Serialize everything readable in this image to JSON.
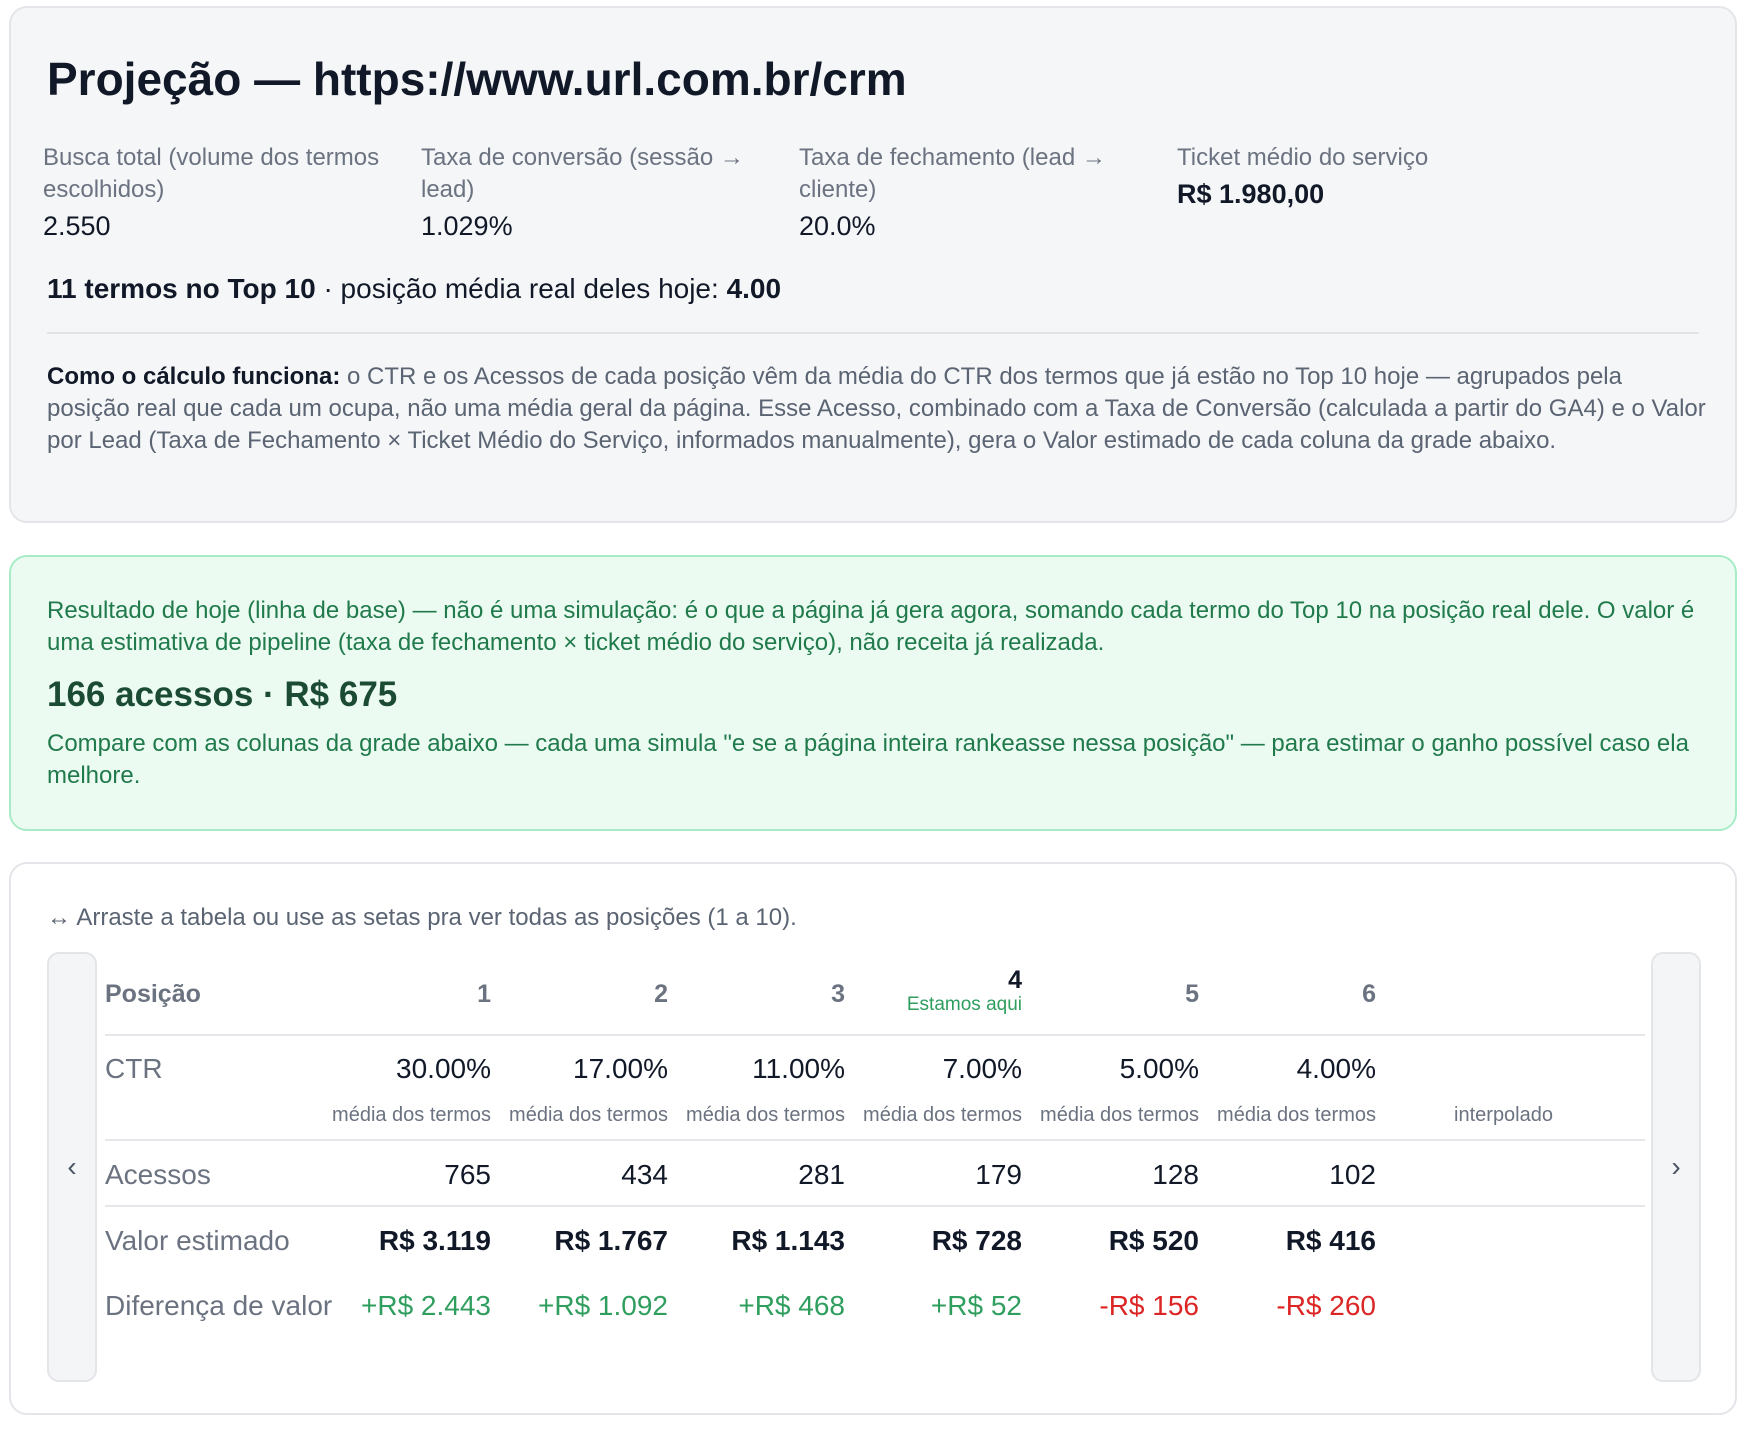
{
  "projection": {
    "title": "Projeção — https://www.url.com.br/crm",
    "metrics": [
      {
        "label": "Busca total (volume dos termos escolhidos)",
        "value": "2.550"
      },
      {
        "label": "Taxa de conversão (sessão → lead)",
        "value": "1.029%"
      },
      {
        "label": "Taxa de fechamento (lead → cliente)",
        "value": "20.0%"
      },
      {
        "label": "Ticket médio do serviço",
        "value": "R$ 1.980,00"
      }
    ],
    "top10_count_text": "11 termos no Top 10",
    "avg_position_label": " · posição média real deles hoje: ",
    "avg_position_value": "4.00",
    "calc_title": "Como o cálculo funciona:",
    "calc_text": " o CTR e os Acessos de cada posição vêm da média do CTR dos termos que já estão no Top 10 hoje — agrupados pela posição real que cada um ocupa, não uma média geral da página. Esse Acesso, combinado com a Taxa de Conversão (calculada a partir do GA4) e o Valor por Lead (Taxa de Fechamento × Ticket Médio do Serviço, informados manualmente), gera o Valor estimado de cada coluna da grade abaixo."
  },
  "baseline": {
    "note": "Resultado de hoje (linha de base) — não é uma simulação: é o que a página já gera agora, somando cada termo do Top 10 na posição real dele. O valor é uma estimativa de pipeline (taxa de fechamento × ticket médio do serviço), não receita já realizada.",
    "result": "166 acessos · R$ 675",
    "compare_note": "Compare com as colunas da grade abaixo — cada uma simula \"e se a página inteira rankeasse nessa posição\" — para estimar o ganho possível caso ela melhore."
  },
  "grid": {
    "hint": "↔ Arraste a tabela ou use as setas pra ver todas as posições (1 a 10).",
    "arrow_left": "‹",
    "arrow_right": "›",
    "row_labels": {
      "position": "Posição",
      "ctr": "CTR",
      "acessos": "Acessos",
      "valor": "Valor estimado",
      "diferenca": "Diferença de valor"
    },
    "current_badge": "Estamos aqui",
    "columns": [
      {
        "position": "1",
        "ctr": "30.00%",
        "source": "média dos termos",
        "acessos": "765",
        "valor": "R$ 3.119",
        "diferenca": "+R$ 2.443",
        "diff_sign": "pos",
        "current": false
      },
      {
        "position": "2",
        "ctr": "17.00%",
        "source": "média dos termos",
        "acessos": "434",
        "valor": "R$ 1.767",
        "diferenca": "+R$ 1.092",
        "diff_sign": "pos",
        "current": false
      },
      {
        "position": "3",
        "ctr": "11.00%",
        "source": "média dos termos",
        "acessos": "281",
        "valor": "R$ 1.143",
        "diferenca": "+R$ 468",
        "diff_sign": "pos",
        "current": false
      },
      {
        "position": "4",
        "ctr": "7.00%",
        "source": "média dos termos",
        "acessos": "179",
        "valor": "R$ 728",
        "diferenca": "+R$ 52",
        "diff_sign": "pos",
        "current": true
      },
      {
        "position": "5",
        "ctr": "5.00%",
        "source": "média dos termos",
        "acessos": "128",
        "valor": "R$ 520",
        "diferenca": "-R$ 156",
        "diff_sign": "neg",
        "current": false
      },
      {
        "position": "6",
        "ctr": "4.00%",
        "source": "média dos termos",
        "acessos": "102",
        "valor": "R$ 416",
        "diferenca": "-R$ 260",
        "diff_sign": "neg",
        "current": false
      },
      {
        "position": "",
        "ctr": "",
        "source": "interpolado",
        "acessos": "",
        "valor": "",
        "diferenca": "",
        "diff_sign": "",
        "current": false
      }
    ]
  }
}
